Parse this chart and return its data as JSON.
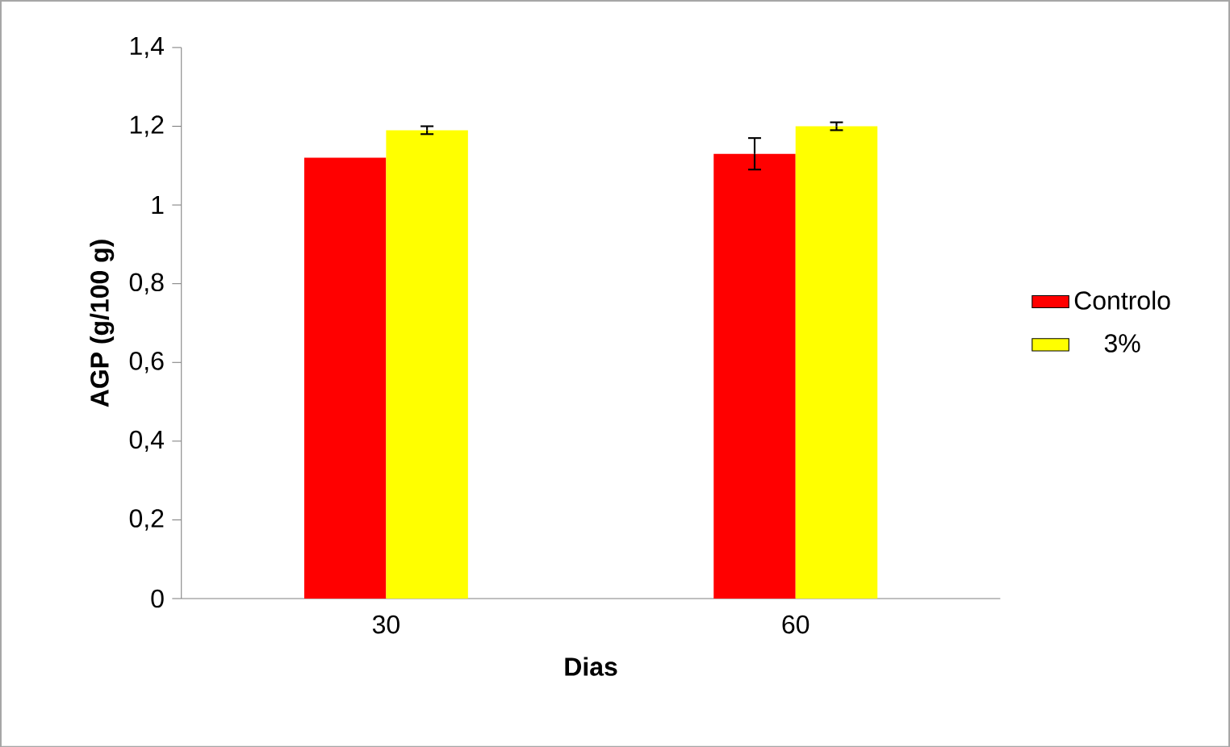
{
  "chart_data": {
    "type": "bar",
    "xlabel": "Dias",
    "ylabel": "AGP (g/100 g)",
    "categories": [
      "30",
      "60"
    ],
    "series": [
      {
        "name": "Controlo",
        "color": "#ff0000",
        "values": [
          1.12,
          1.13
        ],
        "errors": [
          null,
          0.04
        ]
      },
      {
        "name": "3%",
        "color": "#ffff00",
        "values": [
          1.19,
          1.2
        ],
        "errors": [
          0.01,
          0.01
        ]
      }
    ],
    "ylim": [
      0,
      1.4
    ],
    "yticks": [
      0,
      {
        "value": 0.2,
        "label": "0,2"
      },
      {
        "value": 0.4,
        "label": "0,4"
      },
      {
        "value": 0.6,
        "label": "0,6"
      },
      {
        "value": 0.8,
        "label": "0,8"
      },
      1,
      {
        "value": 1.2,
        "label": "1,2"
      },
      {
        "value": 1.4,
        "label": "1,4"
      }
    ],
    "legend": "right",
    "grid": false
  }
}
